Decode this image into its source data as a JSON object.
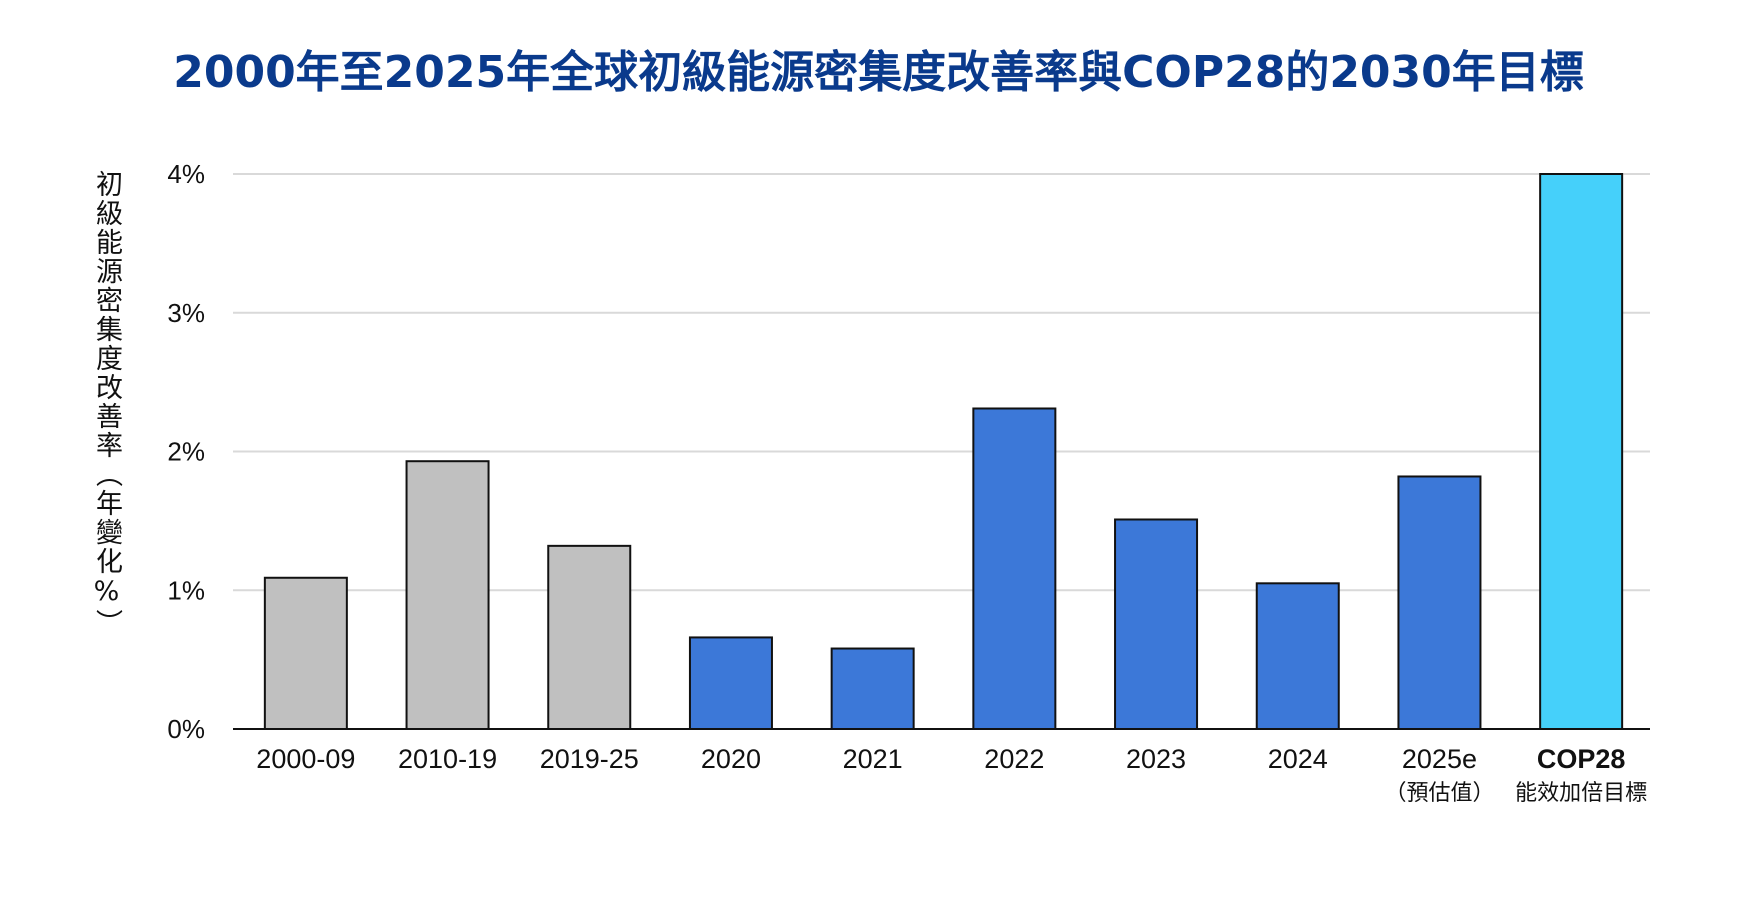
{
  "title": "2000年至2025年全球初級能源密集度改善率與COP28的2030年目標",
  "chart_data": {
    "type": "bar",
    "title": "2000年至2025年全球初級能源密集度改善率與COP28的2030年目標",
    "xlabel": "",
    "ylabel": "初級能源密集度改善率（年變化%）",
    "ylim": [
      0,
      4
    ],
    "yticks": [
      "0%",
      "1%",
      "2%",
      "3%",
      "4%"
    ],
    "grid": true,
    "categories": [
      {
        "label": "2000-09",
        "sub": "",
        "value": 1.09,
        "color": "#c0c0c0",
        "bold": false
      },
      {
        "label": "2010-19",
        "sub": "",
        "value": 1.93,
        "color": "#c0c0c0",
        "bold": false
      },
      {
        "label": "2019-25",
        "sub": "",
        "value": 1.32,
        "color": "#c0c0c0",
        "bold": false
      },
      {
        "label": "2020",
        "sub": "",
        "value": 0.66,
        "color": "#3c78d8",
        "bold": false
      },
      {
        "label": "2021",
        "sub": "",
        "value": 0.58,
        "color": "#3c78d8",
        "bold": false
      },
      {
        "label": "2022",
        "sub": "",
        "value": 2.31,
        "color": "#3c78d8",
        "bold": false
      },
      {
        "label": "2023",
        "sub": "",
        "value": 1.51,
        "color": "#3c78d8",
        "bold": false
      },
      {
        "label": "2024",
        "sub": "",
        "value": 1.05,
        "color": "#3c78d8",
        "bold": false
      },
      {
        "label": "2025e",
        "sub": "（預估值）",
        "value": 1.82,
        "color": "#3c78d8",
        "bold": false
      },
      {
        "label": "COP28",
        "sub": "能效加倍目標",
        "value": 4.0,
        "color": "#45d0fa",
        "bold": true
      }
    ]
  }
}
